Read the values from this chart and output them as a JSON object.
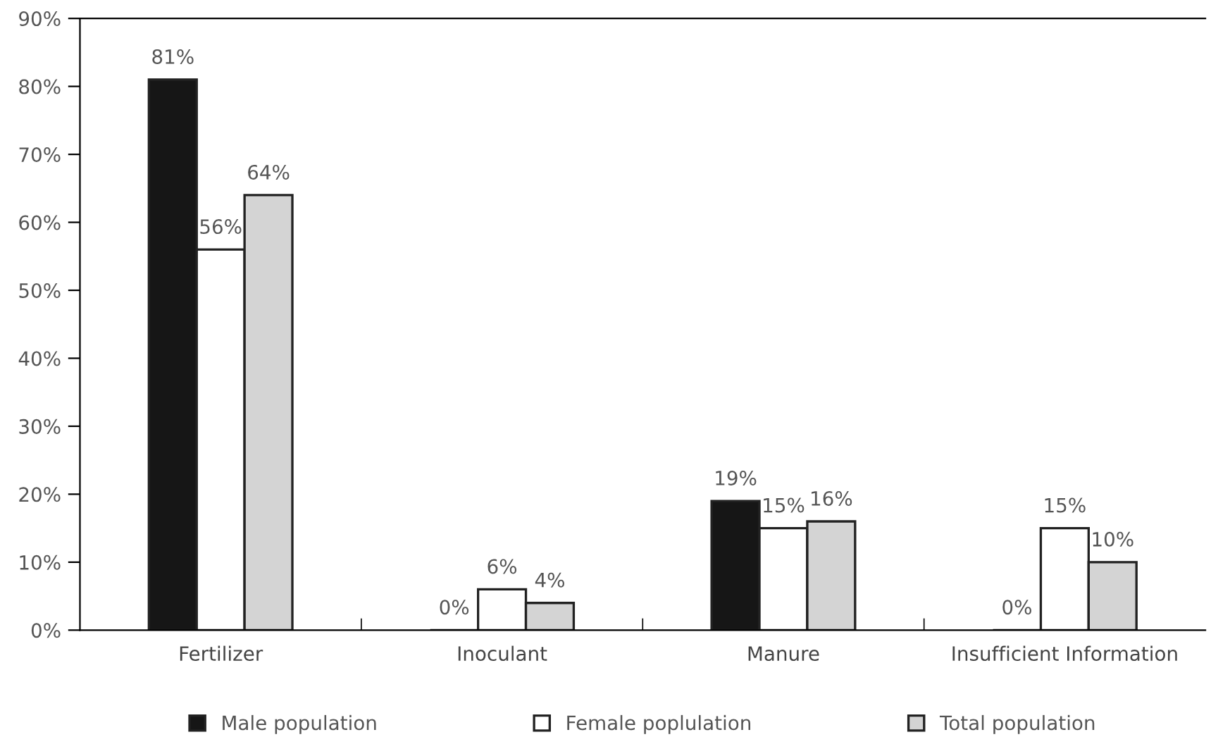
{
  "chart_data": {
    "type": "bar",
    "categories": [
      "Fertilizer",
      "Inoculant",
      "Manure",
      "Insufficient Information"
    ],
    "series": [
      {
        "name": "Male population",
        "color": "#161616",
        "values": [
          81,
          0,
          19,
          0
        ],
        "value_labels": [
          "81%",
          "0%",
          "19%",
          "0%"
        ]
      },
      {
        "name": "Female poplulation",
        "color": "#ffffff",
        "values": [
          56,
          6,
          15,
          15
        ],
        "value_labels": [
          "56%",
          "6%",
          "15%",
          "15%"
        ]
      },
      {
        "name": "Total population",
        "color": "#d4d4d4",
        "values": [
          64,
          4,
          16,
          10
        ],
        "value_labels": [
          "64%",
          "4%",
          "16%",
          "10%"
        ]
      }
    ],
    "ylim": [
      0,
      90
    ],
    "yticks": [
      {
        "value": 0,
        "label": "0%"
      },
      {
        "value": 10,
        "label": "10%"
      },
      {
        "value": 20,
        "label": "20%"
      },
      {
        "value": 30,
        "label": "30%"
      },
      {
        "value": 40,
        "label": "40%"
      },
      {
        "value": 50,
        "label": "50%"
      },
      {
        "value": 60,
        "label": "60%"
      },
      {
        "value": 70,
        "label": "70%"
      },
      {
        "value": 80,
        "label": "80%"
      },
      {
        "value": 90,
        "label": "90%"
      }
    ],
    "grid": false,
    "legend": "bottom"
  }
}
